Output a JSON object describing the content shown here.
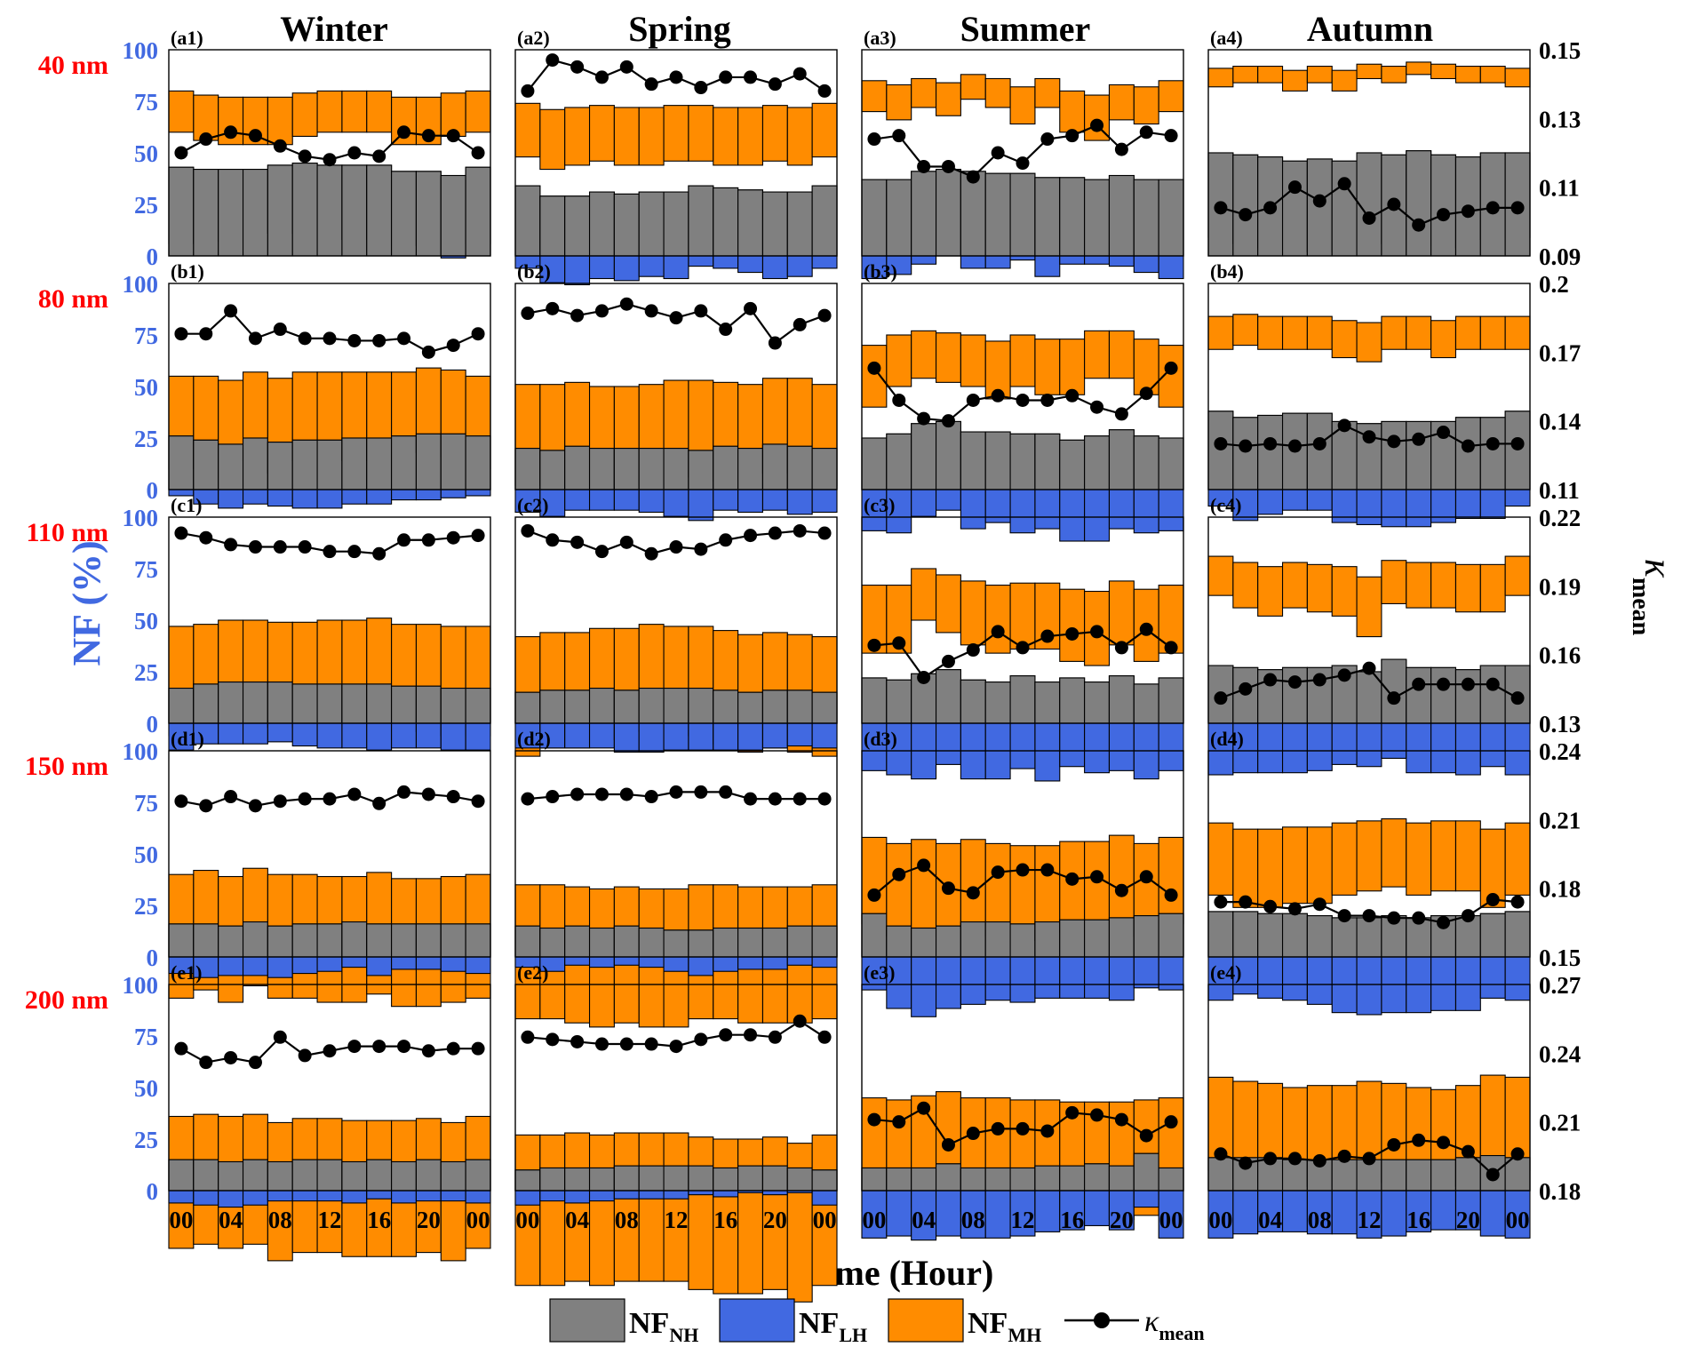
{
  "figure": {
    "season_titles": [
      "Winter",
      "Spring",
      "Summer",
      "Autumn"
    ],
    "size_labels": [
      "40 nm",
      "80 nm",
      "110 nm",
      "150 nm",
      "200 nm"
    ],
    "y_left_label": "NF (%)",
    "y_right_label": {
      "main": "κ",
      "sub": "mean"
    },
    "x_label": "Local Time (Hour)",
    "x_tick_labels": [
      "00",
      "04",
      "08",
      "12",
      "16",
      "20",
      "00"
    ],
    "left_ticks": [
      "100",
      "75",
      "50",
      "25",
      "0"
    ],
    "legend": [
      {
        "key": "NH",
        "main": "NF",
        "sub": "NH",
        "color": "#808080"
      },
      {
        "key": "LH",
        "main": "NF",
        "sub": "LH",
        "color": "#4169e1"
      },
      {
        "key": "MH",
        "main": "NF",
        "sub": "MH",
        "color": "#ff8c00"
      },
      {
        "key": "kappa",
        "main": "κ",
        "sub": "mean",
        "color": "#000000"
      }
    ],
    "colors": {
      "NH": "#808080",
      "LH": "#4169e1",
      "MH": "#ff8c00",
      "kappa": "#000000",
      "size_label": "#ff0000",
      "left_axis": "#4169e1"
    }
  },
  "chart_data": {
    "type": "bar",
    "stacked": true,
    "hours": [
      0,
      2,
      4,
      6,
      8,
      10,
      12,
      14,
      16,
      18,
      20,
      22,
      24
    ],
    "ylim_left": [
      0,
      100
    ],
    "right_axis": [
      {
        "row": "40 nm",
        "ylim": [
          0.09,
          0.15
        ],
        "ticks": [
          "0.15",
          "0.13",
          "0.11",
          "0.09"
        ]
      },
      {
        "row": "80 nm",
        "ylim": [
          0.11,
          0.2
        ],
        "ticks": [
          "0.2",
          "0.17",
          "0.14",
          "0.11"
        ]
      },
      {
        "row": "110 nm",
        "ylim": [
          0.13,
          0.22
        ],
        "ticks": [
          "0.22",
          "0.19",
          "0.16",
          "0.13"
        ]
      },
      {
        "row": "150 nm",
        "ylim": [
          0.15,
          0.24
        ],
        "ticks": [
          "0.24",
          "0.21",
          "0.18",
          "0.15"
        ]
      },
      {
        "row": "200 nm",
        "ylim": [
          0.18,
          0.27
        ],
        "ticks": [
          "0.27",
          "0.24",
          "0.21",
          "0.18"
        ]
      }
    ],
    "panels": [
      [
        {
          "label": "(a1)",
          "season": "Winter",
          "size": "40 nm",
          "NH": [
            43,
            42,
            42,
            42,
            44,
            45,
            44,
            44,
            44,
            41,
            41,
            39,
            43
          ],
          "NHLH": [
            80,
            78,
            77,
            77,
            77,
            79,
            80,
            80,
            80,
            77,
            77,
            79,
            80
          ],
          "kappa": [
            0.12,
            0.124,
            0.126,
            0.125,
            0.122,
            0.119,
            0.118,
            0.12,
            0.119,
            0.126,
            0.125,
            0.125,
            0.12
          ]
        },
        {
          "label": "(a2)",
          "season": "Spring",
          "size": "40 nm",
          "NH": [
            34,
            29,
            29,
            31,
            30,
            31,
            31,
            34,
            33,
            32,
            31,
            31,
            34
          ],
          "NHLH": [
            74,
            71,
            72,
            73,
            72,
            72,
            73,
            73,
            72,
            72,
            73,
            72,
            74
          ],
          "kappa": [
            0.138,
            0.147,
            0.145,
            0.142,
            0.145,
            0.14,
            0.142,
            0.139,
            0.142,
            0.142,
            0.14,
            0.143,
            0.138
          ]
        },
        {
          "label": "(a3)",
          "season": "Summer",
          "size": "40 nm",
          "NH": [
            37,
            37,
            41,
            42,
            41,
            40,
            40,
            38,
            38,
            37,
            39,
            37,
            37
          ],
          "NHLH": [
            85,
            83,
            86,
            84,
            88,
            86,
            82,
            86,
            80,
            78,
            83,
            82,
            85
          ],
          "kappa": [
            0.124,
            0.125,
            0.116,
            0.116,
            0.113,
            0.12,
            0.117,
            0.124,
            0.125,
            0.128,
            0.121,
            0.126,
            0.125
          ]
        },
        {
          "label": "(a4)",
          "season": "Autumn",
          "size": "40 nm",
          "NH": [
            50,
            49,
            48,
            46,
            47,
            46,
            50,
            49,
            51,
            49,
            48,
            50,
            50
          ],
          "NHLH": [
            91,
            92,
            92,
            90,
            92,
            90,
            93,
            92,
            94,
            93,
            92,
            92,
            91
          ],
          "kappa": [
            0.104,
            0.102,
            0.104,
            0.11,
            0.106,
            0.111,
            0.101,
            0.105,
            0.099,
            0.102,
            0.103,
            0.104,
            0.104
          ]
        }
      ],
      [
        {
          "label": "(b1)",
          "season": "Winter",
          "size": "80 nm",
          "NH": [
            26,
            24,
            22,
            25,
            23,
            24,
            24,
            25,
            25,
            26,
            27,
            27,
            26
          ],
          "NHLH": [
            55,
            55,
            53,
            57,
            54,
            57,
            57,
            57,
            57,
            57,
            59,
            58,
            55
          ],
          "kappa": [
            0.178,
            0.178,
            0.188,
            0.176,
            0.18,
            0.176,
            0.176,
            0.175,
            0.175,
            0.176,
            0.17,
            0.173,
            0.178
          ]
        },
        {
          "label": "(b2)",
          "season": "Spring",
          "size": "80 nm",
          "NH": [
            20,
            19,
            21,
            20,
            20,
            20,
            20,
            19,
            21,
            20,
            22,
            21,
            20
          ],
          "NHLH": [
            51,
            51,
            52,
            50,
            50,
            51,
            53,
            53,
            52,
            51,
            54,
            54,
            51
          ],
          "kappa": [
            0.187,
            0.189,
            0.186,
            0.188,
            0.191,
            0.188,
            0.185,
            0.188,
            0.18,
            0.189,
            0.174,
            0.182,
            0.186
          ]
        },
        {
          "label": "(b3)",
          "season": "Summer",
          "size": "80 nm",
          "NH": [
            25,
            27,
            32,
            33,
            28,
            28,
            27,
            27,
            24,
            26,
            29,
            26,
            25
          ],
          "NHLH": [
            70,
            75,
            77,
            76,
            75,
            72,
            75,
            73,
            73,
            77,
            77,
            73,
            70
          ],
          "kappa": [
            0.163,
            0.149,
            0.141,
            0.14,
            0.149,
            0.151,
            0.149,
            0.149,
            0.151,
            0.146,
            0.143,
            0.152,
            0.163
          ]
        },
        {
          "label": "(b4)",
          "season": "Autumn",
          "size": "80 nm",
          "NH": [
            38,
            35,
            36,
            37,
            37,
            33,
            32,
            33,
            33,
            33,
            35,
            35,
            38
          ],
          "NHLH": [
            84,
            85,
            84,
            84,
            84,
            82,
            81,
            84,
            84,
            82,
            84,
            84,
            84
          ],
          "kappa": [
            0.13,
            0.129,
            0.13,
            0.129,
            0.13,
            0.138,
            0.133,
            0.131,
            0.132,
            0.135,
            0.129,
            0.13,
            0.13
          ]
        }
      ],
      [
        {
          "label": "(c1)",
          "season": "Winter",
          "size": "110 nm",
          "NH": [
            17,
            19,
            20,
            20,
            20,
            19,
            19,
            19,
            19,
            18,
            18,
            17,
            17
          ],
          "NHLH": [
            47,
            48,
            50,
            50,
            49,
            49,
            50,
            50,
            51,
            48,
            48,
            47,
            47
          ],
          "kappa": [
            0.213,
            0.211,
            0.208,
            0.207,
            0.207,
            0.207,
            0.205,
            0.205,
            0.204,
            0.21,
            0.21,
            0.211,
            0.212
          ]
        },
        {
          "label": "(c2)",
          "season": "Spring",
          "size": "110 nm",
          "NH": [
            15,
            16,
            16,
            17,
            16,
            17,
            17,
            17,
            16,
            15,
            16,
            16,
            15
          ],
          "NHLH": [
            42,
            44,
            44,
            46,
            46,
            48,
            47,
            47,
            45,
            43,
            44,
            43,
            42
          ],
          "kappa": [
            0.214,
            0.21,
            0.209,
            0.205,
            0.209,
            0.204,
            0.207,
            0.206,
            0.21,
            0.212,
            0.213,
            0.214,
            0.213
          ]
        },
        {
          "label": "(c3)",
          "season": "Summer",
          "size": "110 nm",
          "NH": [
            22,
            21,
            24,
            26,
            21,
            20,
            23,
            20,
            22,
            20,
            23,
            19,
            22
          ],
          "NHLH": [
            67,
            67,
            75,
            72,
            69,
            67,
            68,
            68,
            65,
            64,
            69,
            65,
            67
          ],
          "kappa": [
            0.164,
            0.165,
            0.15,
            0.157,
            0.162,
            0.17,
            0.163,
            0.168,
            0.169,
            0.17,
            0.163,
            0.171,
            0.163
          ]
        },
        {
          "label": "(c4)",
          "season": "Autumn",
          "size": "110 nm",
          "NH": [
            28,
            27,
            26,
            27,
            27,
            28,
            25,
            31,
            27,
            27,
            26,
            28,
            28
          ],
          "NHLH": [
            81,
            78,
            76,
            78,
            77,
            76,
            71,
            79,
            78,
            78,
            77,
            77,
            81
          ],
          "kappa": [
            0.141,
            0.145,
            0.149,
            0.148,
            0.149,
            0.151,
            0.154,
            0.141,
            0.147,
            0.147,
            0.147,
            0.147,
            0.141
          ]
        }
      ],
      [
        {
          "label": "(d1)",
          "season": "Winter",
          "size": "150 nm",
          "NH": [
            16,
            16,
            15,
            17,
            15,
            16,
            16,
            17,
            16,
            16,
            16,
            16,
            16
          ],
          "NHLH": [
            40,
            42,
            39,
            43,
            40,
            40,
            39,
            39,
            41,
            38,
            38,
            39,
            40
          ],
          "kappa": [
            0.218,
            0.216,
            0.22,
            0.216,
            0.218,
            0.219,
            0.219,
            0.221,
            0.217,
            0.222,
            0.221,
            0.22,
            0.218
          ]
        },
        {
          "label": "(d2)",
          "season": "Spring",
          "size": "150 nm",
          "NH": [
            15,
            14,
            15,
            14,
            15,
            14,
            13,
            13,
            14,
            14,
            14,
            15,
            15
          ],
          "NHLH": [
            35,
            35,
            34,
            33,
            34,
            33,
            33,
            35,
            35,
            34,
            34,
            34,
            35
          ],
          "kappa": [
            0.219,
            0.22,
            0.221,
            0.221,
            0.221,
            0.22,
            0.222,
            0.222,
            0.222,
            0.219,
            0.219,
            0.219,
            0.219
          ]
        },
        {
          "label": "(d3)",
          "season": "Summer",
          "size": "150 nm",
          "NH": [
            21,
            15,
            14,
            15,
            17,
            17,
            16,
            17,
            18,
            18,
            19,
            20,
            21
          ],
          "NHLH": [
            58,
            55,
            57,
            55,
            57,
            55,
            54,
            54,
            56,
            56,
            59,
            55,
            58
          ],
          "kappa": [
            0.177,
            0.186,
            0.19,
            0.18,
            0.178,
            0.187,
            0.188,
            0.188,
            0.184,
            0.185,
            0.179,
            0.185,
            0.177
          ]
        },
        {
          "label": "(d4)",
          "season": "Autumn",
          "size": "150 nm",
          "NH": [
            22,
            22,
            21,
            21,
            20,
            19,
            19,
            20,
            19,
            20,
            20,
            21,
            22
          ],
          "NHLH": [
            65,
            62,
            62,
            63,
            63,
            65,
            66,
            67,
            65,
            66,
            66,
            62,
            65
          ],
          "kappa": [
            0.174,
            0.174,
            0.172,
            0.171,
            0.173,
            0.168,
            0.168,
            0.167,
            0.167,
            0.165,
            0.168,
            0.175,
            0.174
          ]
        }
      ],
      [
        {
          "label": "(e1)",
          "season": "Winter",
          "size": "200 nm",
          "NH": [
            15,
            15,
            14,
            15,
            14,
            15,
            15,
            14,
            15,
            14,
            15,
            14,
            15
          ],
          "NHLH": [
            36,
            37,
            36,
            37,
            33,
            35,
            35,
            34,
            34,
            34,
            35,
            33,
            36
          ],
          "kappa": [
            0.242,
            0.236,
            0.238,
            0.236,
            0.247,
            0.239,
            0.241,
            0.243,
            0.243,
            0.243,
            0.241,
            0.242,
            0.242
          ]
        },
        {
          "label": "(e2)",
          "season": "Spring",
          "size": "200 nm",
          "NH": [
            10,
            11,
            11,
            11,
            12,
            12,
            12,
            12,
            11,
            12,
            12,
            11,
            10
          ],
          "NHLH": [
            27,
            27,
            28,
            27,
            28,
            28,
            28,
            26,
            25,
            25,
            26,
            23,
            27
          ],
          "kappa": [
            0.247,
            0.246,
            0.245,
            0.244,
            0.244,
            0.244,
            0.243,
            0.246,
            0.248,
            0.248,
            0.247,
            0.254,
            0.247
          ]
        },
        {
          "label": "(e3)",
          "season": "Summer",
          "size": "200 nm",
          "NH": [
            11,
            11,
            11,
            13,
            11,
            11,
            11,
            12,
            12,
            13,
            12,
            18,
            11
          ],
          "NHLH": [
            45,
            44,
            46,
            48,
            45,
            45,
            44,
            44,
            43,
            43,
            43,
            44,
            45
          ],
          "kappa": [
            0.211,
            0.21,
            0.216,
            0.2,
            0.205,
            0.207,
            0.207,
            0.206,
            0.214,
            0.213,
            0.211,
            0.204,
            0.21
          ]
        },
        {
          "label": "(e4)",
          "season": "Autumn",
          "size": "200 nm",
          "NH": [
            16,
            16,
            16,
            15,
            15,
            15,
            15,
            15,
            15,
            15,
            16,
            17,
            16
          ],
          "NHLH": [
            55,
            53,
            52,
            50,
            51,
            51,
            53,
            52,
            50,
            49,
            51,
            56,
            55
          ],
          "kappa": [
            0.196,
            0.192,
            0.194,
            0.194,
            0.193,
            0.195,
            0.194,
            0.2,
            0.202,
            0.201,
            0.197,
            0.187,
            0.196
          ]
        }
      ]
    ]
  }
}
